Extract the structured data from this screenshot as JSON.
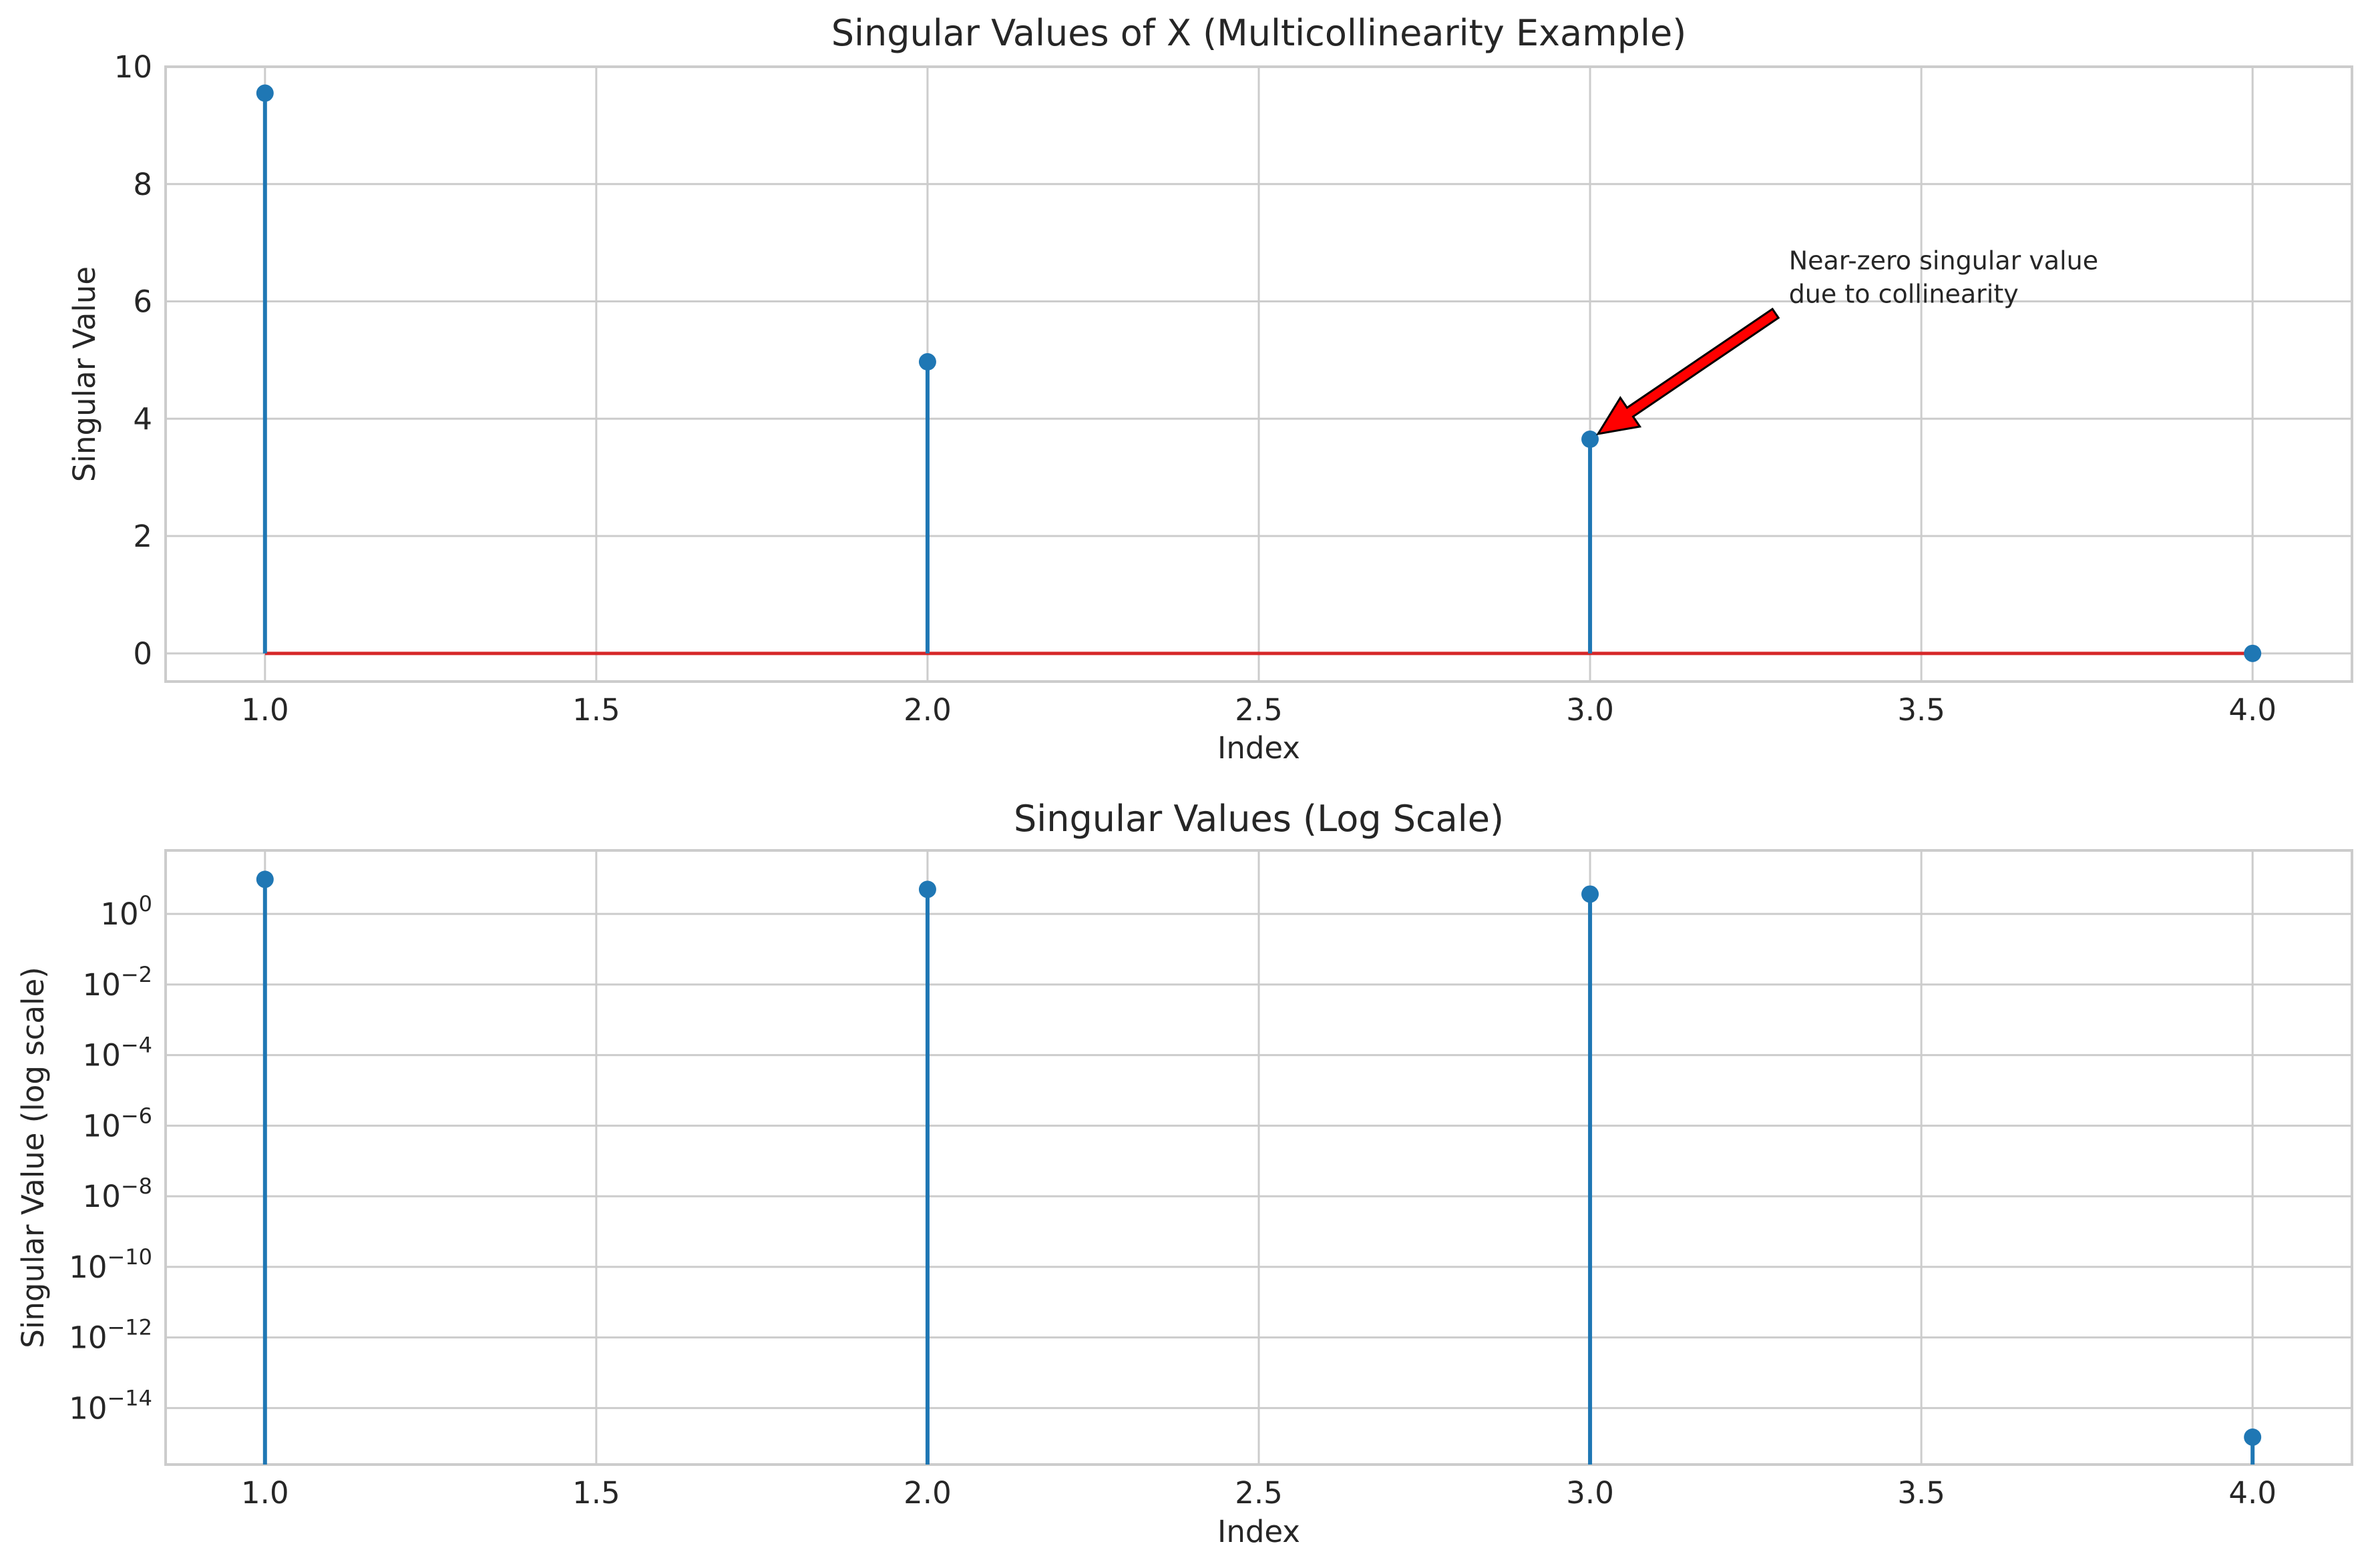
{
  "chart_data": [
    {
      "type": "stem",
      "title": "Singular Values of X (Multicollinearity Example)",
      "xlabel": "Index",
      "ylabel": "Singular Value",
      "xlim": [
        0.85,
        4.15
      ],
      "ylim": [
        -0.48,
        10.0
      ],
      "yscale": "linear",
      "x": [
        1.0,
        2.0,
        3.0,
        4.0
      ],
      "values": [
        9.55,
        4.97,
        3.65,
        0.0
      ],
      "xticks": [
        "1.0",
        "1.5",
        "2.0",
        "2.5",
        "3.0",
        "3.5",
        "4.0"
      ],
      "yticks": [
        "0",
        "2",
        "4",
        "6",
        "8",
        "10"
      ],
      "grid": true,
      "baseline": 0,
      "colors": {
        "stem": "#1f77b4",
        "baseline": "#d62728"
      },
      "annotation": {
        "text_lines": [
          "Near-zero singular value",
          "due to collinearity"
        ],
        "xy": [
          3.0,
          3.65
        ],
        "xytext": [
          3.3,
          6.0
        ],
        "arrow_color": "#ff0000"
      }
    },
    {
      "type": "stem",
      "title": "Singular Values (Log Scale)",
      "xlabel": "Index",
      "ylabel": "Singular Value (log scale)",
      "xlim": [
        0.85,
        4.15
      ],
      "ylim_log10": [
        -15.6,
        1.8
      ],
      "yscale": "log",
      "x": [
        1.0,
        2.0,
        3.0,
        4.0
      ],
      "values": [
        9.55,
        4.97,
        3.65,
        1.5e-15
      ],
      "xticks": [
        "1.0",
        "1.5",
        "2.0",
        "2.5",
        "3.0",
        "3.5",
        "4.0"
      ],
      "yticks_base": "10",
      "yticks_exponents": [
        "0",
        "−2",
        "−4",
        "−6",
        "−8",
        "−10",
        "−12",
        "−14"
      ],
      "grid": true,
      "colors": {
        "stem": "#1f77b4"
      }
    }
  ]
}
